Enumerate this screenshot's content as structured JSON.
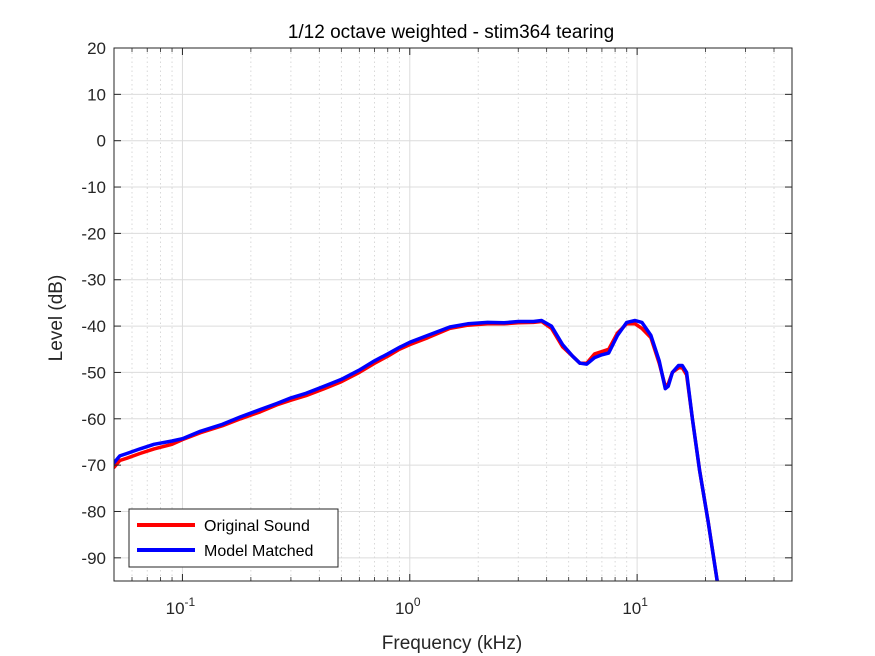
{
  "chart_data": {
    "type": "line",
    "title": "1/12 octave weighted - stim364 tearing",
    "xlabel": "Frequency (kHz)",
    "ylabel": "Level (dB)",
    "xscale": "log",
    "xlim": [
      0.05,
      48
    ],
    "ylim": [
      -95,
      20
    ],
    "grid": true,
    "minor_grid": true,
    "legend_position": "bottom-left",
    "x_ticks": [
      {
        "value": 0.1,
        "base": "10",
        "exp": "-1"
      },
      {
        "value": 1,
        "base": "10",
        "exp": "0"
      },
      {
        "value": 10,
        "base": "10",
        "exp": "1"
      }
    ],
    "y_ticks": [
      {
        "value": 20,
        "label": "20"
      },
      {
        "value": 10,
        "label": "10"
      },
      {
        "value": 0,
        "label": "0"
      },
      {
        "value": -10,
        "label": "-10"
      },
      {
        "value": -20,
        "label": "-20"
      },
      {
        "value": -30,
        "label": "-30"
      },
      {
        "value": -40,
        "label": "-40"
      },
      {
        "value": -50,
        "label": "-50"
      },
      {
        "value": -60,
        "label": "-60"
      },
      {
        "value": -70,
        "label": "-70"
      },
      {
        "value": -80,
        "label": "-80"
      },
      {
        "value": -90,
        "label": "-90"
      }
    ],
    "series": [
      {
        "name": "Original Sound",
        "color": "#ff0000",
        "x": [
          0.05,
          0.053,
          0.057,
          0.065,
          0.075,
          0.09,
          0.1,
          0.12,
          0.15,
          0.18,
          0.22,
          0.26,
          0.3,
          0.35,
          0.42,
          0.5,
          0.6,
          0.7,
          0.8,
          0.9,
          1.0,
          1.2,
          1.5,
          1.8,
          2.2,
          2.6,
          3.0,
          3.5,
          3.8,
          4.2,
          4.7,
          5.2,
          5.6,
          6.0,
          6.5,
          7.0,
          7.5,
          8.2,
          9.0,
          9.8,
          10.5,
          11.5,
          12.5,
          13.3,
          13.7,
          14.3,
          15.2,
          15.8,
          16.5,
          17.5,
          18.8,
          20.5,
          22.5
        ],
        "y": [
          -70.5,
          -69,
          -68.5,
          -67.5,
          -66.5,
          -65.5,
          -64.5,
          -63,
          -61.5,
          -60,
          -58.5,
          -57,
          -56,
          -55,
          -53.5,
          -52,
          -50,
          -48,
          -46.5,
          -45,
          -44,
          -42.5,
          -40.5,
          -39.8,
          -39.5,
          -39.5,
          -39.3,
          -39.2,
          -39,
          -40.5,
          -44.5,
          -46.5,
          -48,
          -48,
          -46,
          -45.5,
          -45,
          -41.5,
          -39.5,
          -39.5,
          -40.5,
          -42.5,
          -48,
          -53,
          -52.5,
          -50,
          -49,
          -49,
          -50.5,
          -60,
          -71,
          -82,
          -95
        ]
      },
      {
        "name": "Model Matched",
        "color": "#0000ff",
        "x": [
          0.05,
          0.053,
          0.057,
          0.065,
          0.075,
          0.09,
          0.1,
          0.12,
          0.15,
          0.18,
          0.22,
          0.26,
          0.3,
          0.35,
          0.42,
          0.5,
          0.6,
          0.7,
          0.8,
          0.9,
          1.0,
          1.2,
          1.5,
          1.8,
          2.2,
          2.6,
          3.0,
          3.5,
          3.8,
          4.2,
          4.7,
          5.2,
          5.6,
          6.0,
          6.5,
          7.0,
          7.5,
          8.2,
          9.0,
          9.8,
          10.5,
          11.5,
          12.5,
          13.3,
          13.7,
          14.3,
          15.2,
          15.8,
          16.5,
          17.5,
          18.8,
          20.5,
          22.5
        ],
        "y": [
          -69.5,
          -68,
          -67.5,
          -66.5,
          -65.5,
          -64.8,
          -64.3,
          -62.7,
          -61.2,
          -59.6,
          -58,
          -56.7,
          -55.5,
          -54.5,
          -53,
          -51.5,
          -49.5,
          -47.5,
          -46,
          -44.6,
          -43.5,
          -42,
          -40.2,
          -39.5,
          -39.2,
          -39.3,
          -39,
          -39,
          -38.8,
          -40,
          -44,
          -46.5,
          -48,
          -48.2,
          -46.8,
          -46.2,
          -45.8,
          -42,
          -39.2,
          -38.8,
          -39.2,
          -42,
          -47.5,
          -53.5,
          -53,
          -50,
          -48.5,
          -48.5,
          -50,
          -60,
          -71,
          -82,
          -95
        ]
      }
    ]
  }
}
